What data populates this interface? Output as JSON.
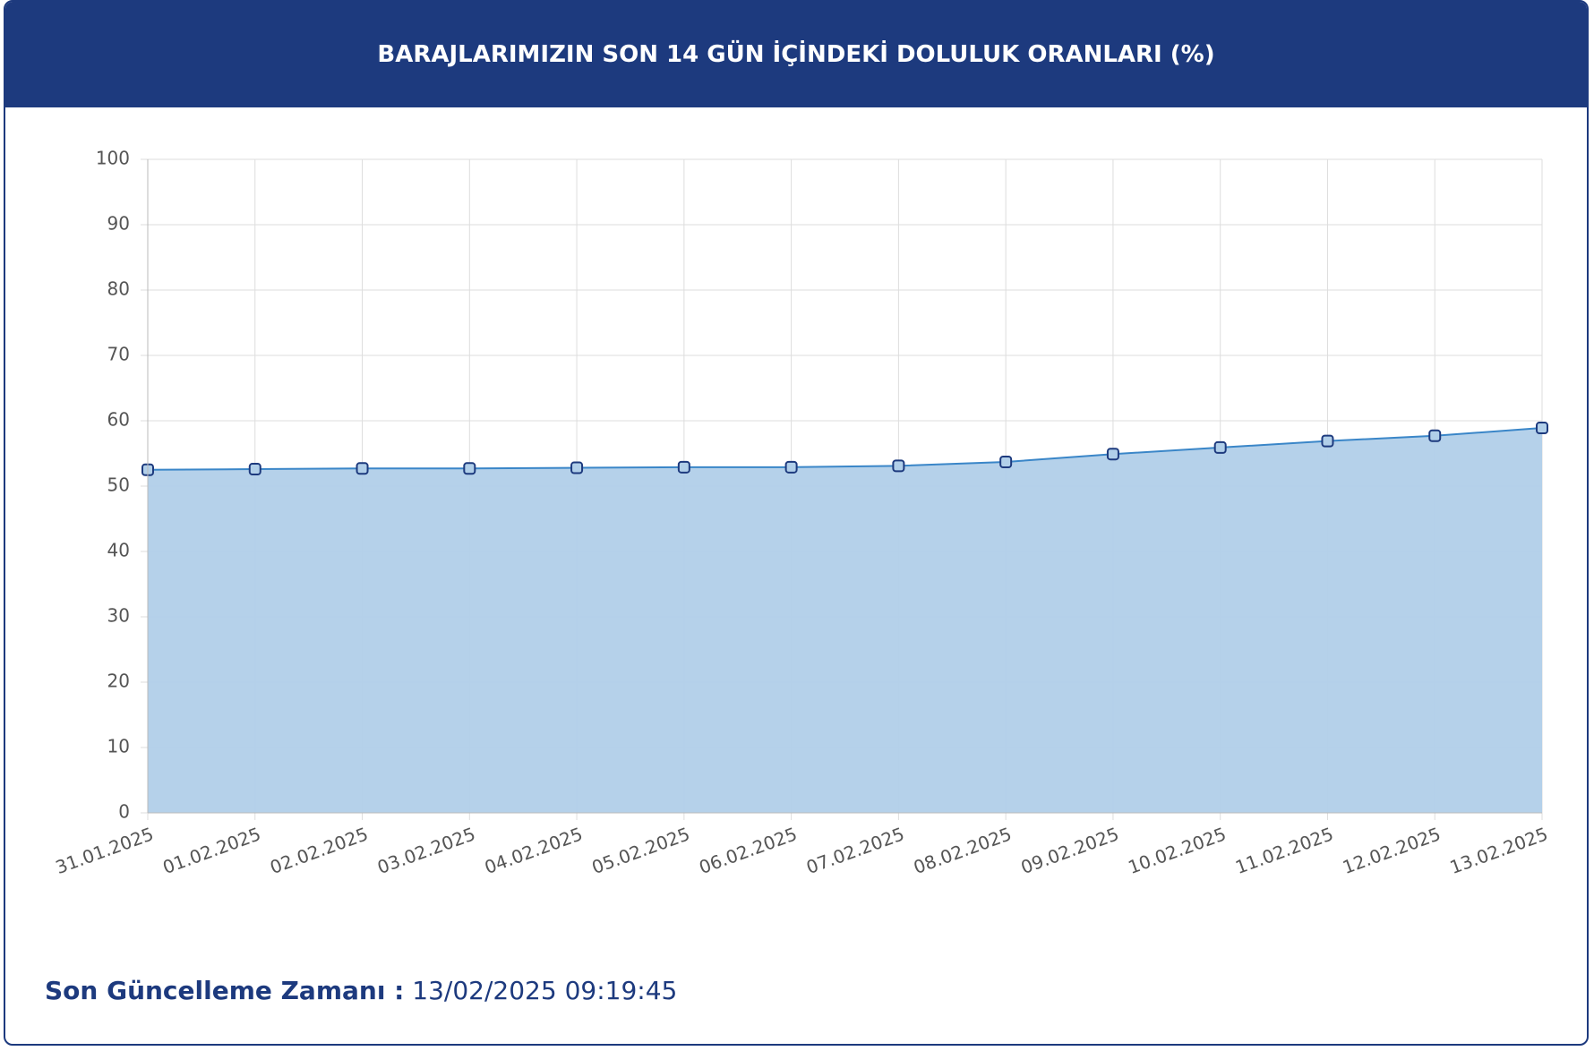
{
  "chart_data": {
    "type": "area",
    "title": "BARAJLARIMIZIN SON 14 GÜN İÇİNDEKİ DOLULUK ORANLARI (%)",
    "categories": [
      "31.01.2025",
      "01.02.2025",
      "02.02.2025",
      "03.02.2025",
      "04.02.2025",
      "05.02.2025",
      "06.02.2025",
      "07.02.2025",
      "08.02.2025",
      "09.02.2025",
      "10.02.2025",
      "11.02.2025",
      "12.02.2025",
      "13.02.2025"
    ],
    "values": [
      52.5,
      52.6,
      52.7,
      52.7,
      52.8,
      52.9,
      52.9,
      53.1,
      53.7,
      54.9,
      55.9,
      56.9,
      57.7,
      58.9
    ],
    "color": "#3a86c8",
    "fill_color": "#b1cfe9",
    "ylim": [
      0,
      100
    ],
    "yticks": [
      0,
      10,
      20,
      30,
      40,
      50,
      60,
      70,
      80,
      90,
      100
    ],
    "grid": true
  },
  "footer": {
    "label": "Son Güncelleme Zamanı :",
    "value": "13/02/2025 09:19:45"
  }
}
